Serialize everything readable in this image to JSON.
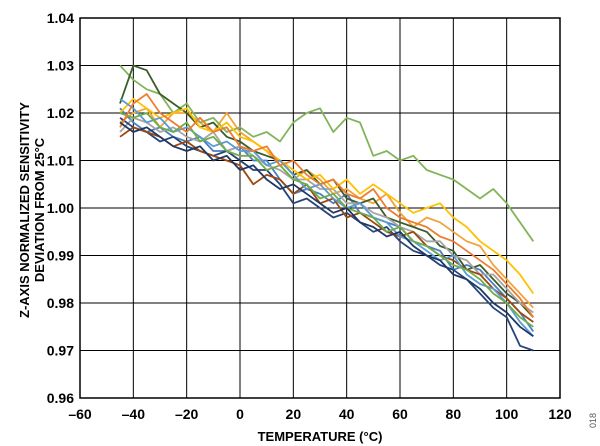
{
  "chart_data": {
    "type": "line",
    "xlabel": "TEMPERATURE (°C)",
    "ylabel_lines": [
      "Z-AXIS NORMALIZED SENSITIVITY",
      "DEVIATION FROM 25°C"
    ],
    "xlim": [
      -60,
      120
    ],
    "ylim": [
      0.96,
      1.04
    ],
    "x_ticks": [
      -60,
      -40,
      -20,
      0,
      20,
      40,
      60,
      80,
      100,
      120
    ],
    "x_tick_labels": [
      "–60",
      "–40",
      "–20",
      "0",
      "20",
      "40",
      "60",
      "80",
      "100",
      "120"
    ],
    "y_ticks": [
      0.96,
      0.97,
      0.98,
      0.99,
      1.0,
      1.01,
      1.02,
      1.03,
      1.04
    ],
    "y_tick_labels": [
      "0.96",
      "0.97",
      "0.98",
      "0.99",
      "1.00",
      "1.01",
      "1.02",
      "1.03",
      "1.04"
    ],
    "grid": true,
    "legend": "none",
    "figure_id": "018",
    "series": [
      {
        "color": "#f2a33a",
        "x": [
          -45,
          -40,
          -35,
          -30,
          -25,
          -20,
          -15,
          -10,
          -5,
          0,
          5,
          10,
          15,
          20,
          25,
          30,
          35,
          40,
          45,
          50,
          55,
          60,
          65,
          70,
          75,
          80,
          85,
          90,
          95,
          100,
          105,
          110
        ],
        "y": [
          1.018,
          1.02,
          1.021,
          1.017,
          1.02,
          1.02,
          1.018,
          1.016,
          1.02,
          1.016,
          1.014,
          1.012,
          1.009,
          1.006,
          1.008,
          1.006,
          1.003,
          1.004,
          1.002,
          1.001,
          1.003,
          0.999,
          0.996,
          0.998,
          0.997,
          0.995,
          0.993,
          0.992,
          0.988,
          0.985,
          0.982,
          0.979
        ]
      },
      {
        "color": "#4a7fc1",
        "x": [
          -45,
          -40,
          -35,
          -30,
          -25,
          -20,
          -15,
          -10,
          -5,
          0,
          5,
          10,
          15,
          20,
          25,
          30,
          35,
          40,
          45,
          50,
          55,
          60,
          65,
          70,
          75,
          80,
          85,
          90,
          95,
          100,
          105,
          110
        ],
        "y": [
          1.021,
          1.018,
          1.016,
          1.017,
          1.015,
          1.014,
          1.015,
          1.012,
          1.012,
          1.013,
          1.01,
          1.01,
          1.006,
          1.003,
          1.004,
          1.003,
          1.001,
          1.003,
          0.999,
          0.998,
          0.997,
          0.996,
          0.993,
          0.992,
          0.991,
          0.987,
          0.988,
          0.987,
          0.984,
          0.981,
          0.978,
          0.974
        ]
      },
      {
        "color": "#82b55a",
        "x": [
          -45,
          -40,
          -35,
          -30,
          -25,
          -20,
          -15,
          -10,
          -5,
          0,
          5,
          10,
          15,
          20,
          25,
          30,
          35,
          40,
          45,
          50,
          55,
          60,
          65,
          70,
          75,
          80,
          85,
          90,
          95,
          100,
          105,
          110
        ],
        "y": [
          1.03,
          1.027,
          1.025,
          1.024,
          1.02,
          1.022,
          1.018,
          1.019,
          1.016,
          1.017,
          1.015,
          1.016,
          1.014,
          1.018,
          1.02,
          1.021,
          1.016,
          1.019,
          1.018,
          1.011,
          1.012,
          1.01,
          1.011,
          1.008,
          1.007,
          1.006,
          1.004,
          1.002,
          1.004,
          1.001,
          0.997,
          0.993
        ]
      },
      {
        "color": "#3b5e2b",
        "x": [
          -45,
          -40,
          -35,
          -30,
          -25,
          -20,
          -15,
          -10,
          -5,
          0,
          5,
          10,
          15,
          20,
          25,
          30,
          35,
          40,
          45,
          50,
          55,
          60,
          65,
          70,
          75,
          80,
          85,
          90,
          95,
          100,
          105,
          110
        ],
        "y": [
          1.022,
          1.03,
          1.029,
          1.024,
          1.022,
          1.02,
          1.017,
          1.018,
          1.015,
          1.014,
          1.012,
          1.011,
          1.01,
          1.007,
          1.008,
          1.005,
          1.006,
          1.002,
          1.001,
          1.002,
          0.998,
          0.997,
          0.996,
          0.995,
          0.992,
          0.991,
          0.987,
          0.988,
          0.985,
          0.982,
          0.98,
          0.977
        ]
      },
      {
        "color": "#a5a5a5",
        "x": [
          -45,
          -40,
          -35,
          -30,
          -25,
          -20,
          -15,
          -10,
          -5,
          0,
          5,
          10,
          15,
          20,
          25,
          30,
          35,
          40,
          45,
          50,
          55,
          60,
          65,
          70,
          75,
          80,
          85,
          90,
          95,
          100,
          105,
          110
        ],
        "y": [
          1.016,
          1.019,
          1.018,
          1.016,
          1.017,
          1.015,
          1.014,
          1.016,
          1.012,
          1.013,
          1.011,
          1.009,
          1.008,
          1.006,
          1.006,
          1.004,
          1.004,
          1.001,
          1.001,
          0.999,
          0.998,
          0.996,
          0.995,
          0.993,
          0.993,
          0.99,
          0.989,
          0.986,
          0.986,
          0.983,
          0.98,
          0.978
        ]
      },
      {
        "color": "#ffc000",
        "x": [
          -45,
          -40,
          -35,
          -30,
          -25,
          -20,
          -15,
          -10,
          -5,
          0,
          5,
          10,
          15,
          20,
          25,
          30,
          35,
          40,
          45,
          50,
          55,
          60,
          65,
          70,
          75,
          80,
          85,
          90,
          95,
          100,
          105,
          110
        ],
        "y": [
          1.02,
          1.023,
          1.021,
          1.019,
          1.02,
          1.021,
          1.017,
          1.016,
          1.018,
          1.015,
          1.014,
          1.012,
          1.01,
          1.008,
          1.006,
          1.007,
          1.004,
          1.006,
          1.003,
          1.005,
          1.003,
          1.001,
          0.999,
          1.0,
          1.001,
          0.998,
          0.996,
          0.993,
          0.991,
          0.989,
          0.986,
          0.982
        ]
      },
      {
        "color": "#264478",
        "x": [
          -45,
          -40,
          -35,
          -30,
          -25,
          -20,
          -15,
          -10,
          -5,
          0,
          5,
          10,
          15,
          20,
          25,
          30,
          35,
          40,
          45,
          50,
          55,
          60,
          65,
          70,
          75,
          80,
          85,
          90,
          95,
          100,
          105,
          110
        ],
        "y": [
          1.019,
          1.017,
          1.016,
          1.014,
          1.015,
          1.013,
          1.012,
          1.011,
          1.012,
          1.01,
          1.008,
          1.008,
          1.005,
          1.001,
          1.002,
          1.0,
          0.998,
          0.999,
          0.997,
          0.995,
          0.996,
          0.993,
          0.991,
          0.99,
          0.988,
          0.987,
          0.985,
          0.982,
          0.979,
          0.977,
          0.971,
          0.97
        ]
      },
      {
        "color": "#9e480e",
        "x": [
          -45,
          -40,
          -35,
          -30,
          -25,
          -20,
          -15,
          -10,
          -5,
          0,
          5,
          10,
          15,
          20,
          25,
          30,
          35,
          40,
          45,
          50,
          55,
          60,
          65,
          70,
          75,
          80,
          85,
          90,
          95,
          100,
          105,
          110
        ],
        "y": [
          1.015,
          1.017,
          1.016,
          1.015,
          1.013,
          1.014,
          1.012,
          1.011,
          1.01,
          1.009,
          1.005,
          1.007,
          1.006,
          1.003,
          1.005,
          1.001,
          1.002,
          0.998,
          0.999,
          0.997,
          0.995,
          0.994,
          0.995,
          0.992,
          0.99,
          0.989,
          0.987,
          0.986,
          0.983,
          0.981,
          0.978,
          0.976
        ]
      },
      {
        "color": "#5b9bd5",
        "x": [
          -45,
          -40,
          -35,
          -30,
          -25,
          -20,
          -15,
          -10,
          -5,
          0,
          5,
          10,
          15,
          20,
          25,
          30,
          35,
          40,
          45,
          50,
          55,
          60,
          65,
          70,
          75,
          80,
          85,
          90,
          95,
          100,
          105,
          110
        ],
        "y": [
          1.023,
          1.021,
          1.018,
          1.019,
          1.016,
          1.017,
          1.015,
          1.013,
          1.014,
          1.012,
          1.012,
          1.009,
          1.01,
          1.007,
          1.004,
          1.005,
          1.002,
          1.0,
          1.001,
          0.998,
          0.997,
          0.994,
          0.993,
          0.991,
          0.989,
          0.99,
          0.986,
          0.984,
          0.983,
          0.98,
          0.976,
          0.973
        ]
      },
      {
        "color": "#70ad47",
        "x": [
          -45,
          -40,
          -35,
          -30,
          -25,
          -20,
          -15,
          -10,
          -5,
          0,
          5,
          10,
          15,
          20,
          25,
          30,
          35,
          40,
          45,
          50,
          55,
          60,
          65,
          70,
          75,
          80,
          85,
          90,
          95,
          100,
          105,
          110
        ],
        "y": [
          1.02,
          1.019,
          1.02,
          1.017,
          1.016,
          1.018,
          1.014,
          1.015,
          1.012,
          1.011,
          1.011,
          1.008,
          1.009,
          1.006,
          1.005,
          1.002,
          1.003,
          1.0,
          0.999,
          0.998,
          0.995,
          0.996,
          0.993,
          0.992,
          0.99,
          0.988,
          0.987,
          0.985,
          0.982,
          0.98,
          0.977,
          0.975
        ]
      },
      {
        "color": "#ed7d31",
        "x": [
          -45,
          -40,
          -35,
          -30,
          -25,
          -20,
          -15,
          -10,
          -5,
          0,
          5,
          10,
          15,
          20,
          25,
          30,
          35,
          40,
          45,
          50,
          55,
          60,
          65,
          70,
          75,
          80,
          85,
          90,
          95,
          100,
          105,
          110
        ],
        "y": [
          1.017,
          1.022,
          1.024,
          1.02,
          1.018,
          1.016,
          1.019,
          1.016,
          1.017,
          1.013,
          1.012,
          1.013,
          1.009,
          1.01,
          1.007,
          1.005,
          1.006,
          1.003,
          1.002,
          1.004,
          1.0,
          0.998,
          0.997,
          0.996,
          0.994,
          0.993,
          0.991,
          0.989,
          0.987,
          0.984,
          0.981,
          0.977
        ]
      },
      {
        "color": "#1f3864",
        "x": [
          -45,
          -40,
          -35,
          -30,
          -25,
          -20,
          -15,
          -10,
          -5,
          0,
          5,
          10,
          15,
          20,
          25,
          30,
          35,
          40,
          45,
          50,
          55,
          60,
          65,
          70,
          75,
          80,
          85,
          90,
          95,
          100,
          105,
          110
        ],
        "y": [
          1.018,
          1.016,
          1.017,
          1.015,
          1.013,
          1.012,
          1.013,
          1.01,
          1.011,
          1.008,
          1.009,
          1.006,
          1.004,
          1.005,
          1.003,
          1.001,
          0.999,
          1.0,
          0.997,
          0.996,
          0.994,
          0.995,
          0.992,
          0.99,
          0.989,
          0.986,
          0.985,
          0.983,
          0.98,
          0.978,
          0.975,
          0.973
        ]
      }
    ]
  }
}
